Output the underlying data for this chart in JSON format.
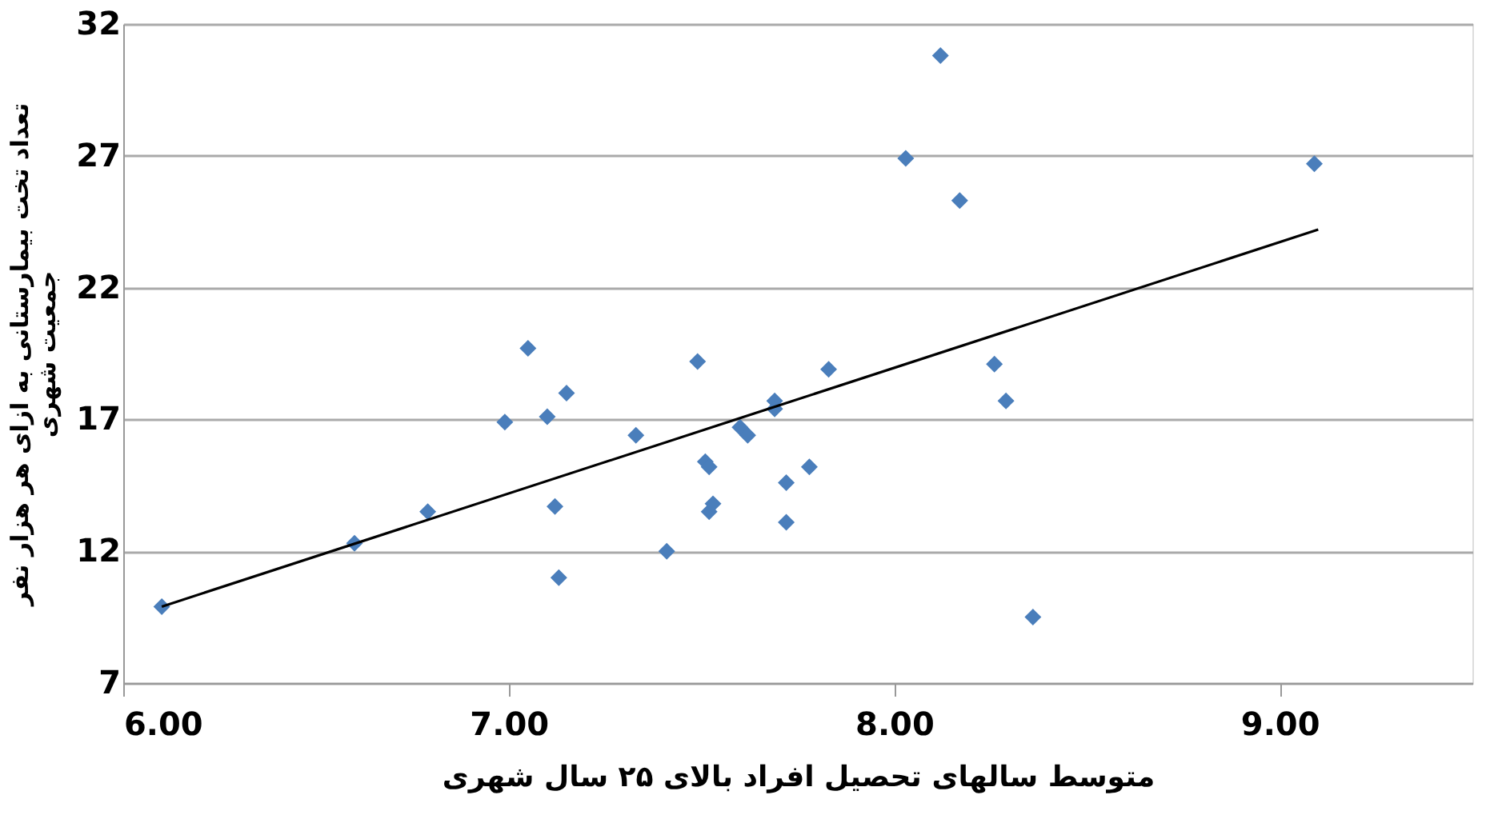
{
  "chart_data": {
    "type": "scatter",
    "xlabel": "متوسط سالهای تحصیل افراد بالای ۲۵ سال شهری",
    "ylabel": "تعداد تخت بیمارستانی به ازای هر هزار نفر\nجمعیت شهری",
    "xlim": [
      6,
      9.5
    ],
    "xticks": [
      {
        "value": 6,
        "label": "6.00"
      },
      {
        "value": 7,
        "label": "7.00"
      },
      {
        "value": 8,
        "label": "8.00"
      },
      {
        "value": 9,
        "label": "9.00"
      }
    ],
    "ylim": [
      7,
      32
    ],
    "yticks": [
      7,
      12,
      17,
      22,
      27,
      32
    ],
    "grid": "y",
    "series": [
      {
        "type": "scatter",
        "marker": "diamond",
        "color": "#4a7ebb",
        "x": [
          6.1,
          6.6,
          6.79,
          6.99,
          7.05,
          7.1,
          7.12,
          7.13,
          7.15,
          7.33,
          7.41,
          7.49,
          7.51,
          7.52,
          7.52,
          7.53,
          7.6,
          7.62,
          7.69,
          7.69,
          7.72,
          7.72,
          7.78,
          7.83,
          8.03,
          8.12,
          8.17,
          8.26,
          8.29,
          8.36,
          9.09
        ],
        "values": [
          9.9,
          12.3,
          13.5,
          16.9,
          19.7,
          17.1,
          13.7,
          11.0,
          18.0,
          16.4,
          12.0,
          19.2,
          15.4,
          15.2,
          13.5,
          13.8,
          16.7,
          16.4,
          17.7,
          17.4,
          14.6,
          13.1,
          15.2,
          18.9,
          26.9,
          30.8,
          25.3,
          19.1,
          17.7,
          9.5,
          26.7
        ]
      },
      {
        "type": "line",
        "color": "#000000",
        "line_style": "solid",
        "x": [
          6.1,
          9.1
        ],
        "values": [
          9.9,
          24.2
        ]
      }
    ]
  }
}
